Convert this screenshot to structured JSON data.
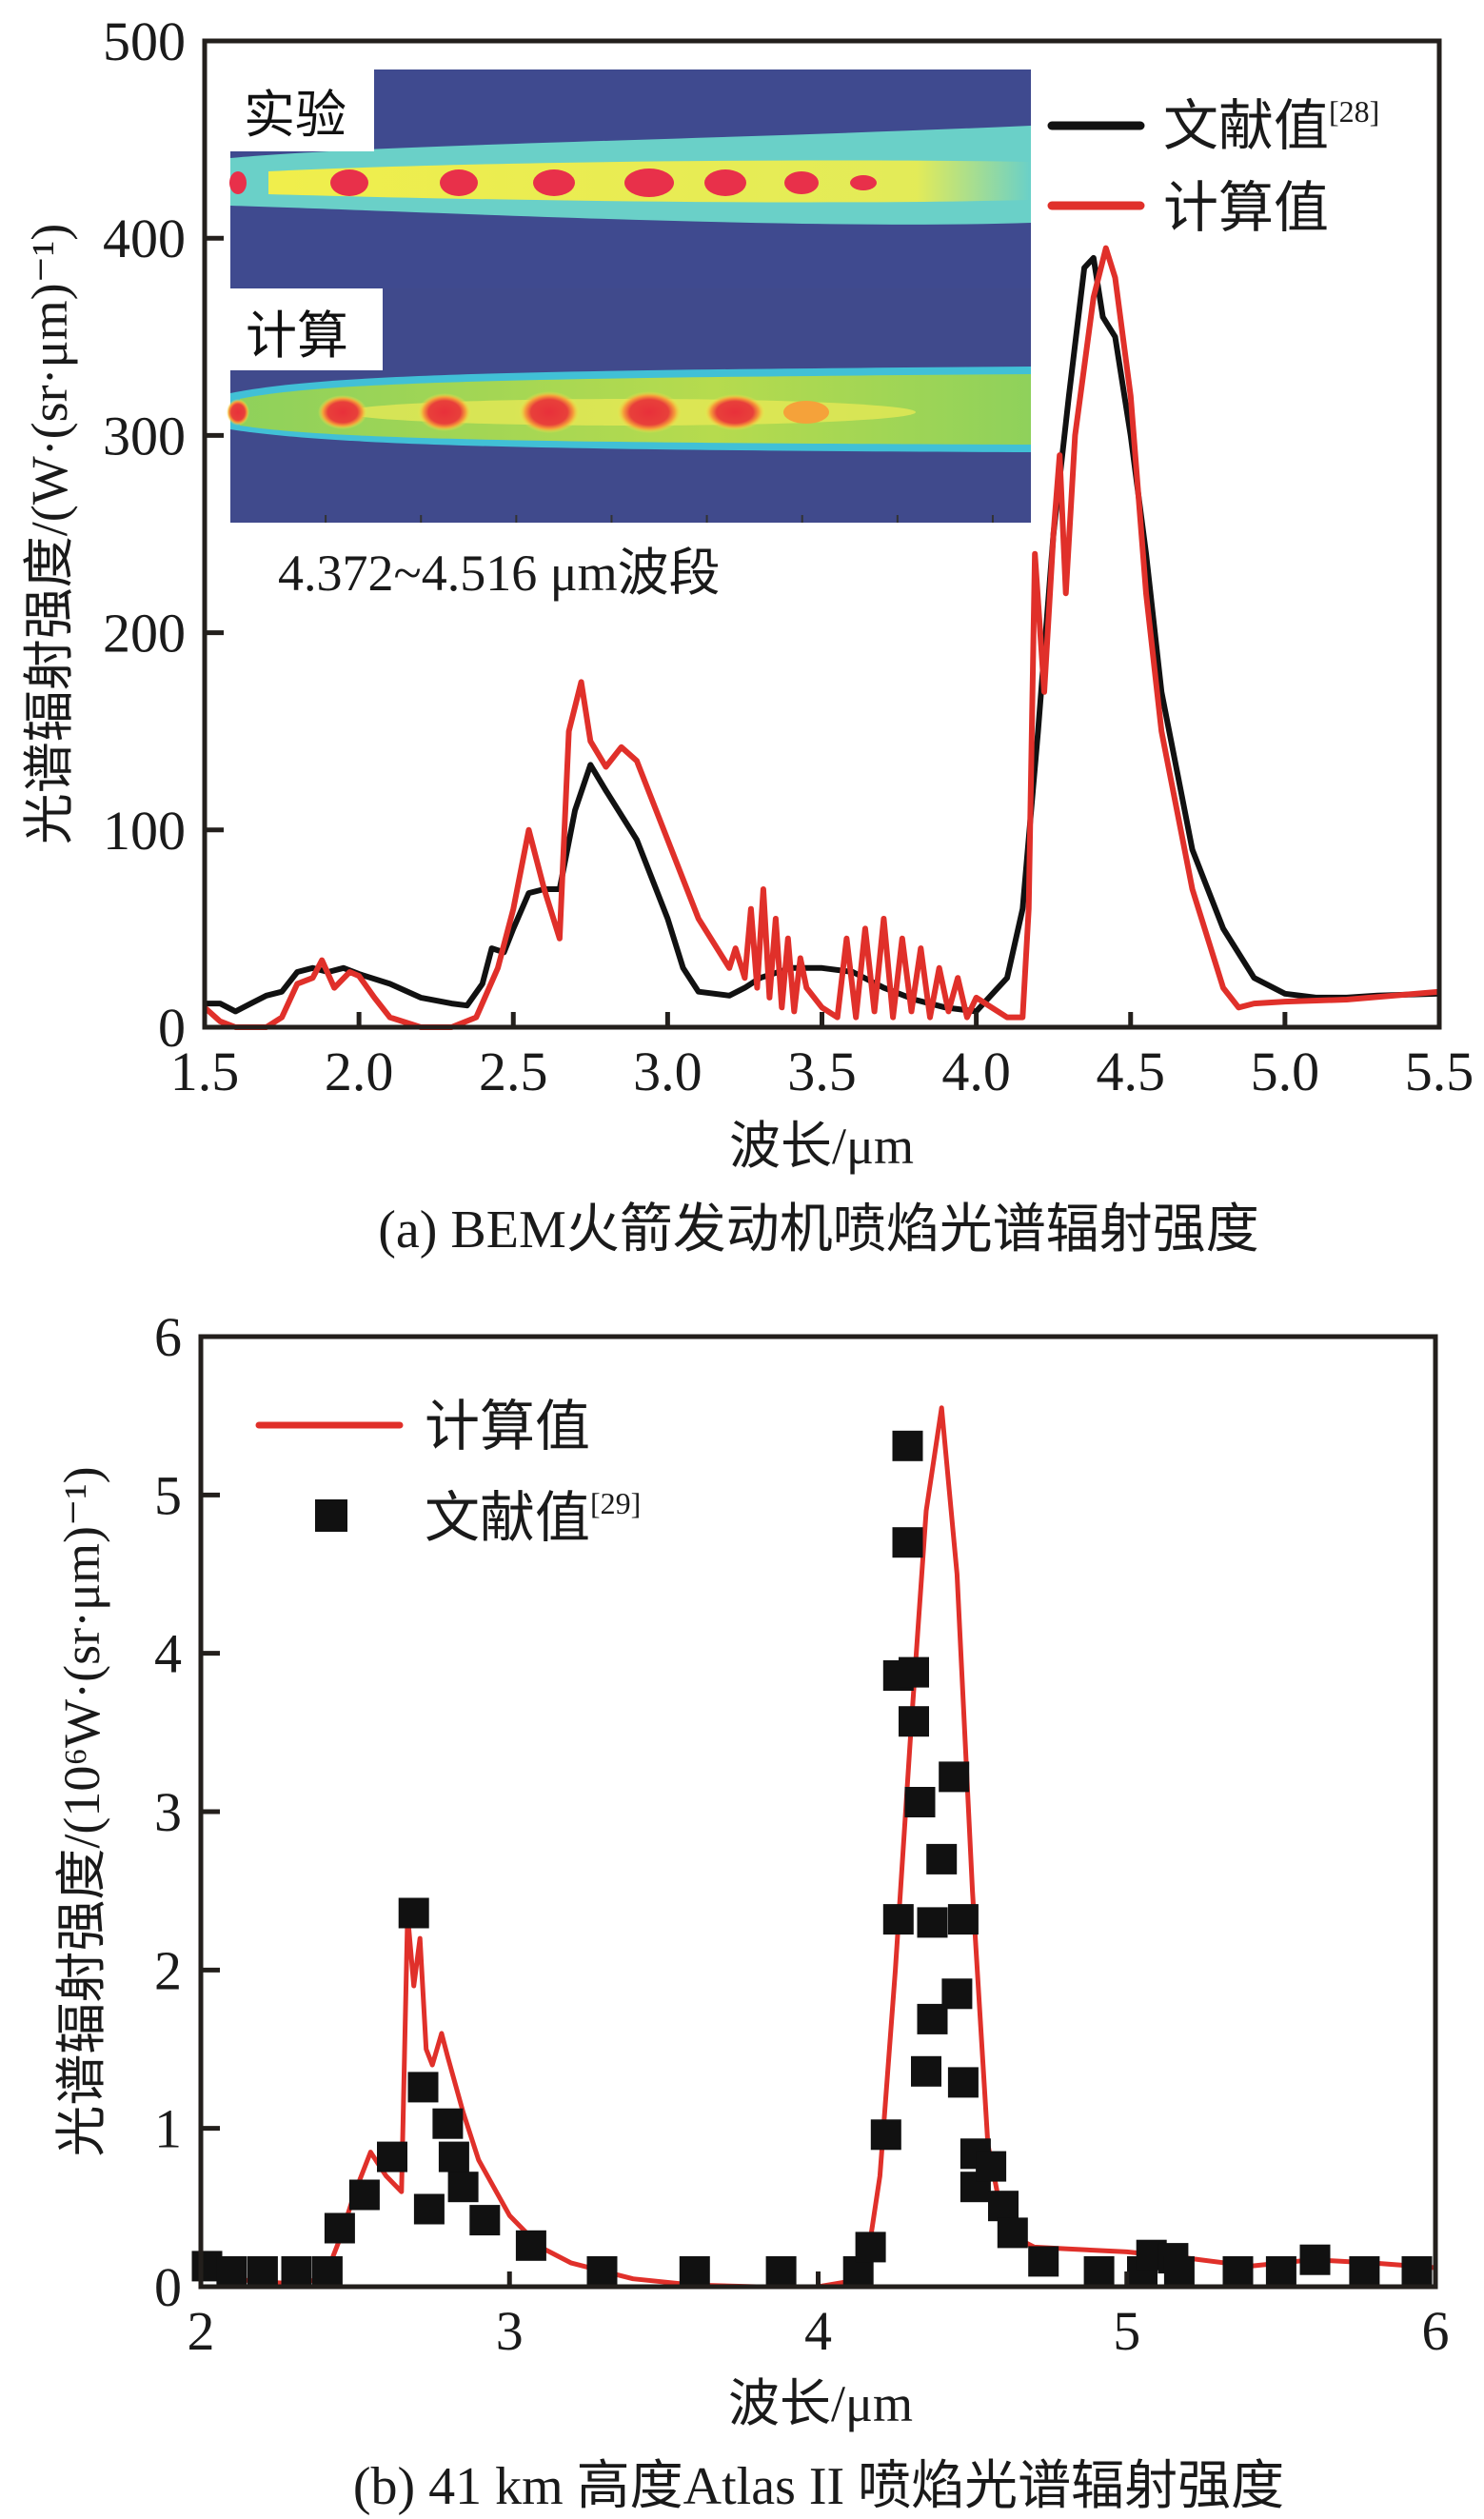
{
  "chart_data": [
    {
      "id": "a",
      "type": "line",
      "title": "",
      "caption": "(a) BEM火箭发动机喷焰光谱辐射强度",
      "xlabel": "波长/μm",
      "ylabel": "光谱辐射强度/(W·(sr·μm)⁻¹)",
      "xlim": [
        1.5,
        5.5
      ],
      "ylim": [
        0,
        500
      ],
      "xticks": [
        1.5,
        2.0,
        2.5,
        3.0,
        3.5,
        4.0,
        4.5,
        5.0,
        5.5
      ],
      "xtick_labels": [
        "1.5",
        "2.0",
        "2.5",
        "3.0",
        "3.5",
        "4.0",
        "4.5",
        "5.0",
        "5.5"
      ],
      "yticks": [
        0,
        100,
        200,
        300,
        400,
        500
      ],
      "ytick_labels": [
        "0",
        "100",
        "200",
        "300",
        "400",
        "500"
      ],
      "grid": false,
      "legend_position": "top-right",
      "series": [
        {
          "name": "文献值",
          "ref": "[28]",
          "color": "#111111",
          "x": [
            1.5,
            1.55,
            1.6,
            1.65,
            1.7,
            1.75,
            1.8,
            1.85,
            1.9,
            1.95,
            2.0,
            2.1,
            2.2,
            2.3,
            2.35,
            2.4,
            2.43,
            2.47,
            2.5,
            2.55,
            2.6,
            2.65,
            2.7,
            2.75,
            2.8,
            2.9,
            3.0,
            3.05,
            3.1,
            3.2,
            3.25,
            3.3,
            3.4,
            3.5,
            3.6,
            3.7,
            3.8,
            3.9,
            4.0,
            4.1,
            4.15,
            4.2,
            4.25,
            4.3,
            4.35,
            4.38,
            4.41,
            4.45,
            4.5,
            4.55,
            4.6,
            4.65,
            4.7,
            4.8,
            4.9,
            5.0,
            5.1,
            5.2,
            5.3,
            5.5
          ],
          "y": [
            12,
            12,
            8,
            12,
            16,
            18,
            28,
            30,
            28,
            30,
            27,
            22,
            15,
            12,
            11,
            22,
            40,
            38,
            50,
            68,
            70,
            70,
            110,
            133,
            120,
            95,
            55,
            30,
            18,
            16,
            20,
            25,
            30,
            30,
            28,
            20,
            14,
            10,
            8,
            25,
            60,
            150,
            250,
            320,
            385,
            390,
            360,
            350,
            300,
            240,
            170,
            130,
            90,
            50,
            25,
            17,
            15,
            15,
            16,
            17
          ]
        },
        {
          "name": "计算值",
          "ref": "",
          "color": "#e0302a",
          "x": [
            1.5,
            1.55,
            1.6,
            1.7,
            1.75,
            1.8,
            1.85,
            1.88,
            1.92,
            1.97,
            2.0,
            2.05,
            2.1,
            2.2,
            2.3,
            2.38,
            2.45,
            2.5,
            2.55,
            2.6,
            2.65,
            2.68,
            2.72,
            2.75,
            2.8,
            2.85,
            2.9,
            3.0,
            3.1,
            3.2,
            3.22,
            3.25,
            3.27,
            3.29,
            3.31,
            3.33,
            3.35,
            3.37,
            3.39,
            3.41,
            3.43,
            3.45,
            3.5,
            3.55,
            3.58,
            3.61,
            3.64,
            3.67,
            3.7,
            3.73,
            3.76,
            3.79,
            3.82,
            3.85,
            3.88,
            3.91,
            3.94,
            3.97,
            4.0,
            4.05,
            4.1,
            4.15,
            4.17,
            4.19,
            4.22,
            4.25,
            4.27,
            4.29,
            4.32,
            4.38,
            4.42,
            4.45,
            4.5,
            4.55,
            4.6,
            4.7,
            4.8,
            4.85,
            4.9,
            5.0,
            5.2,
            5.5
          ],
          "y": [
            10,
            3,
            0,
            0,
            5,
            22,
            25,
            34,
            20,
            28,
            26,
            15,
            5,
            0,
            0,
            5,
            30,
            60,
            100,
            70,
            45,
            150,
            175,
            145,
            132,
            142,
            135,
            95,
            55,
            30,
            40,
            25,
            60,
            20,
            70,
            15,
            55,
            10,
            45,
            8,
            35,
            20,
            10,
            5,
            45,
            5,
            50,
            8,
            55,
            5,
            45,
            8,
            40,
            5,
            30,
            8,
            25,
            5,
            15,
            10,
            5,
            5,
            60,
            240,
            170,
            250,
            290,
            220,
            300,
            370,
            395,
            380,
            320,
            220,
            150,
            70,
            20,
            10,
            12,
            13,
            14,
            18
          ]
        }
      ],
      "inset": {
        "top_label": "实验",
        "bottom_label": "计算",
        "band_label": "4.372~4.516 μm波段",
        "colormap": [
          "#3f4a8f",
          "#41a5d6",
          "#6ad0c8",
          "#8fd15b",
          "#f0ee4c",
          "#f5a23a",
          "#e8303a"
        ]
      }
    },
    {
      "id": "b",
      "type": "line+scatter",
      "title": "",
      "caption": "(b) 41 km 高度Atlas II 喷焰光谱辐射强度",
      "xlabel": "波长/μm",
      "ylabel": "光谱辐射强度/(10⁶W·(sr·μm)⁻¹)",
      "xlim": [
        2,
        6
      ],
      "ylim": [
        0,
        6
      ],
      "xticks": [
        2,
        3,
        4,
        5,
        6
      ],
      "xtick_labels": [
        "2",
        "3",
        "4",
        "5",
        "6"
      ],
      "yticks": [
        0,
        1,
        2,
        3,
        4,
        5,
        6
      ],
      "ytick_labels": [
        "0",
        "1",
        "2",
        "3",
        "4",
        "5",
        "6"
      ],
      "grid": false,
      "legend_position": "top-left",
      "series": [
        {
          "name": "计算值",
          "ref": "",
          "kind": "line",
          "color": "#e0302a",
          "x": [
            2.0,
            2.1,
            2.2,
            2.3,
            2.4,
            2.45,
            2.5,
            2.55,
            2.6,
            2.65,
            2.67,
            2.69,
            2.71,
            2.73,
            2.75,
            2.78,
            2.8,
            2.85,
            2.9,
            3.0,
            3.1,
            3.2,
            3.4,
            3.6,
            3.8,
            4.0,
            4.15,
            4.2,
            4.25,
            4.3,
            4.35,
            4.4,
            4.45,
            4.5,
            4.55,
            4.6,
            4.65,
            4.7,
            4.8,
            5.0,
            5.2,
            5.4,
            5.6,
            5.8,
            6.0
          ],
          "y": [
            0.15,
            0.05,
            0.03,
            0.02,
            0.05,
            0.3,
            0.6,
            0.85,
            0.7,
            0.6,
            2.35,
            1.9,
            2.2,
            1.5,
            1.4,
            1.6,
            1.45,
            1.1,
            0.8,
            0.45,
            0.25,
            0.15,
            0.05,
            0.01,
            0.0,
            0.0,
            0.05,
            0.7,
            2.0,
            3.5,
            4.9,
            5.55,
            4.5,
            2.5,
            0.9,
            0.4,
            0.3,
            0.25,
            0.24,
            0.22,
            0.18,
            0.13,
            0.17,
            0.15,
            0.12
          ]
        },
        {
          "name": "文献值",
          "ref": "[29]",
          "kind": "scatter",
          "color": "#111111",
          "x": [
            2.02,
            2.1,
            2.2,
            2.31,
            2.41,
            2.45,
            2.53,
            2.62,
            2.69,
            2.72,
            2.74,
            2.8,
            2.82,
            2.85,
            2.92,
            3.07,
            3.3,
            3.6,
            3.88,
            4.13,
            4.17,
            4.22,
            4.26,
            4.26,
            4.29,
            4.29,
            4.31,
            4.31,
            4.33,
            4.35,
            4.37,
            4.37,
            4.4,
            4.44,
            4.45,
            4.47,
            4.47,
            4.51,
            4.51,
            4.56,
            4.6,
            4.63,
            4.73,
            4.91,
            5.05,
            5.08,
            5.15,
            5.17,
            5.36,
            5.5,
            5.61,
            5.77,
            5.94
          ],
          "y": [
            0.13,
            0.08,
            0.05,
            0.06,
            0.03,
            0.37,
            0.58,
            0.82,
            2.36,
            1.26,
            0.49,
            1.03,
            0.82,
            0.63,
            0.42,
            0.26,
            0.07,
            0.05,
            0.05,
            0.07,
            0.25,
            0.96,
            3.86,
            2.32,
            5.31,
            4.7,
            3.88,
            3.57,
            3.06,
            1.36,
            2.3,
            1.69,
            2.7,
            3.22,
            1.85,
            2.32,
            1.29,
            0.84,
            0.63,
            0.76,
            0.51,
            0.34,
            0.16,
            0.05,
            0.05,
            0.2,
            0.18,
            0.05,
            0.05,
            0.04,
            0.17,
            0.05,
            0.05
          ]
        }
      ]
    }
  ]
}
